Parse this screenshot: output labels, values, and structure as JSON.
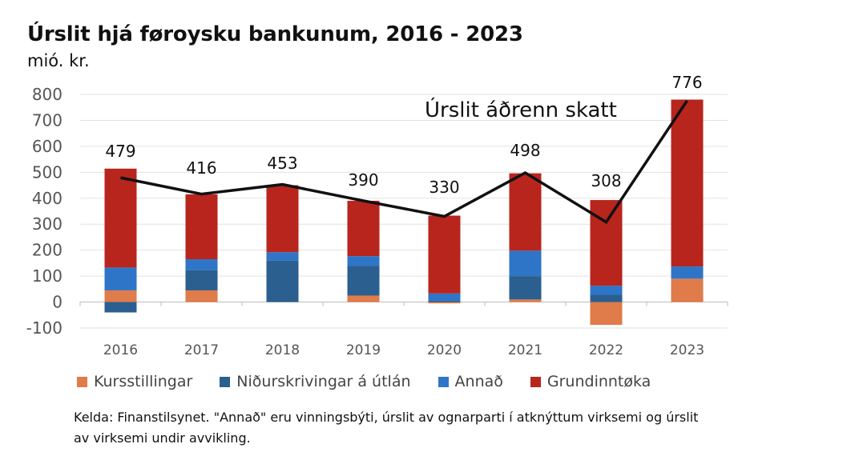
{
  "title": "Úrslit hjá føroysku bankunum, 2016 - 2023",
  "unit_label": "mió. kr.",
  "source_note": "Kelda: Finanstilsynet. \"Annað\" eru vinningsbýti, úrslit av ognarparti í atknýttum virksemi og úrslit av virksemi undir avvikling.",
  "chart_data": {
    "type": "bar",
    "stacked": true,
    "categories": [
      "2016",
      "2017",
      "2018",
      "2019",
      "2020",
      "2021",
      "2022",
      "2023"
    ],
    "ylim": [
      -100,
      800
    ],
    "yticks": [
      -100,
      0,
      100,
      200,
      300,
      400,
      500,
      600,
      700,
      800
    ],
    "grid": true,
    "legend_position": "bottom",
    "series": [
      {
        "name": "Kursstillingar",
        "color": "#e07b4a",
        "values": [
          45,
          45,
          0,
          25,
          -5,
          10,
          -88,
          90
        ]
      },
      {
        "name": "Niðurskrivingar á útlán",
        "color": "#2a5f8f",
        "values": [
          -40,
          78,
          160,
          115,
          5,
          90,
          28,
          0
        ]
      },
      {
        "name": "Annað",
        "color": "#2e75c8",
        "values": [
          88,
          42,
          32,
          37,
          28,
          98,
          35,
          47
        ]
      },
      {
        "name": "Grundinntøka",
        "color": "#b8251d",
        "values": [
          381,
          250,
          258,
          213,
          300,
          298,
          330,
          643
        ]
      }
    ],
    "line_series": {
      "name": "Úrslit áðrenn skatt",
      "color": "#111111",
      "values": [
        479,
        416,
        453,
        390,
        330,
        498,
        308,
        776
      ]
    }
  }
}
